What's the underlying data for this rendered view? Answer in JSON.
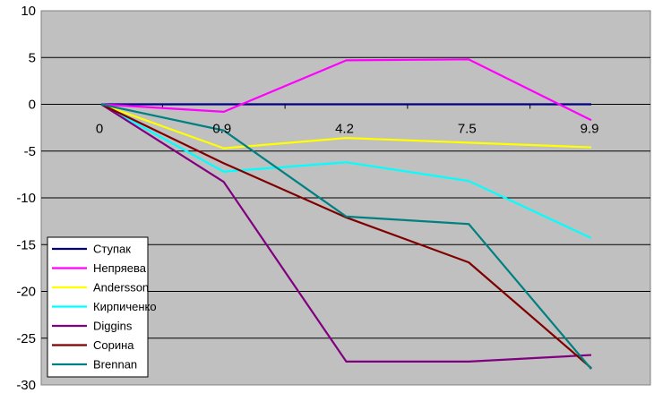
{
  "chart_data": {
    "type": "line",
    "title": "",
    "xlabel": "",
    "ylabel": "",
    "categories": [
      "0",
      "0.9",
      "4.2",
      "7.5",
      "9.9"
    ],
    "ylim": [
      -30,
      10
    ],
    "yticks": [
      10,
      5,
      0,
      -5,
      -10,
      -15,
      -20,
      -25,
      -30
    ],
    "grid": "horizontal",
    "legend_position": "bottom-left",
    "plot_background": "#c0c0c0",
    "series": [
      {
        "name": "Ступак",
        "color": "#000080",
        "values": [
          0,
          0,
          0,
          0,
          0
        ]
      },
      {
        "name": "Непряева",
        "color": "#ff00ff",
        "values": [
          0,
          -0.8,
          4.7,
          4.8,
          -1.7
        ]
      },
      {
        "name": "Andersson",
        "color": "#ffff00",
        "values": [
          0,
          -4.7,
          -3.6,
          -4.1,
          -4.6
        ]
      },
      {
        "name": "Кирпиченко",
        "color": "#00ffff",
        "values": [
          0,
          -7.2,
          -6.2,
          -8.2,
          -14.3
        ]
      },
      {
        "name": "Diggins",
        "color": "#800080",
        "values": [
          0,
          -8.3,
          -27.5,
          -27.5,
          -26.8
        ]
      },
      {
        "name": "Сорина",
        "color": "#800000",
        "values": [
          0,
          -6.3,
          -12.1,
          -16.9,
          -28.2
        ]
      },
      {
        "name": "Brennan",
        "color": "#008080",
        "values": [
          0,
          -2.8,
          -12.0,
          -12.8,
          -28.3
        ]
      }
    ]
  }
}
